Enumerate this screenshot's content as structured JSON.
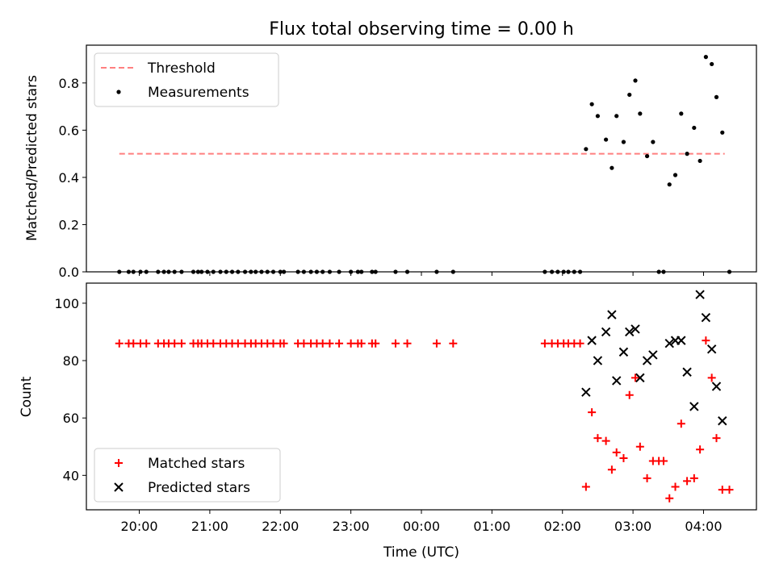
{
  "chart_data": [
    {
      "type": "scatter",
      "title": "Flux total observing time = 0.00 h",
      "xlabel": "",
      "ylabel": "Matched/Predicted stars",
      "xlim": [
        "19:15",
        "04:45"
      ],
      "ylim": [
        0,
        0.96
      ],
      "yticks": [
        0.0,
        0.2,
        0.4,
        0.6,
        0.8
      ],
      "ytick_labels": [
        "0.0",
        "0.2",
        "0.4",
        "0.6",
        "0.8"
      ],
      "legend": {
        "placement": "top-left",
        "entries": [
          "Threshold",
          "Measurements"
        ]
      },
      "threshold": {
        "name": "Threshold",
        "value": 0.5,
        "x_range": [
          "19:43",
          "04:18"
        ],
        "color": "#ff7f7f",
        "style": "dashed"
      },
      "series": [
        {
          "name": "Measurements",
          "color": "#000000",
          "marker": "dot",
          "points": [
            [
              "19:43",
              0
            ],
            [
              "19:51",
              0
            ],
            [
              "19:55",
              0
            ],
            [
              "20:01",
              0
            ],
            [
              "20:06",
              0
            ],
            [
              "20:16",
              0
            ],
            [
              "20:21",
              0
            ],
            [
              "20:25",
              0
            ],
            [
              "20:30",
              0
            ],
            [
              "20:36",
              0
            ],
            [
              "20:46",
              0
            ],
            [
              "20:50",
              0
            ],
            [
              "20:53",
              0
            ],
            [
              "20:58",
              0
            ],
            [
              "21:03",
              0
            ],
            [
              "21:09",
              0
            ],
            [
              "21:14",
              0
            ],
            [
              "21:19",
              0
            ],
            [
              "21:24",
              0
            ],
            [
              "21:30",
              0
            ],
            [
              "21:35",
              0
            ],
            [
              "21:39",
              0
            ],
            [
              "21:44",
              0
            ],
            [
              "21:49",
              0
            ],
            [
              "21:54",
              0
            ],
            [
              "22:00",
              0
            ],
            [
              "22:03",
              0
            ],
            [
              "22:15",
              0
            ],
            [
              "22:20",
              0
            ],
            [
              "22:26",
              0
            ],
            [
              "22:31",
              0
            ],
            [
              "22:36",
              0
            ],
            [
              "22:42",
              0
            ],
            [
              "22:50",
              0
            ],
            [
              "23:00",
              0
            ],
            [
              "23:06",
              0
            ],
            [
              "23:09",
              0
            ],
            [
              "23:18",
              0
            ],
            [
              "23:21",
              0
            ],
            [
              "23:38",
              0
            ],
            [
              "23:48",
              0
            ],
            [
              "00:13",
              0
            ],
            [
              "00:27",
              0
            ],
            [
              "01:45",
              0
            ],
            [
              "01:51",
              0
            ],
            [
              "01:56",
              0
            ],
            [
              "02:01",
              0
            ],
            [
              "02:05",
              0
            ],
            [
              "02:10",
              0
            ],
            [
              "02:15",
              0
            ],
            [
              "02:20",
              0.52
            ],
            [
              "02:25",
              0.71
            ],
            [
              "02:30",
              0.66
            ],
            [
              "02:37",
              0.56
            ],
            [
              "02:42",
              0.44
            ],
            [
              "02:46",
              0.66
            ],
            [
              "02:52",
              0.55
            ],
            [
              "02:57",
              0.75
            ],
            [
              "03:02",
              0.81
            ],
            [
              "03:06",
              0.67
            ],
            [
              "03:12",
              0.49
            ],
            [
              "03:17",
              0.55
            ],
            [
              "03:22",
              0
            ],
            [
              "03:26",
              0
            ],
            [
              "03:31",
              0.37
            ],
            [
              "03:36",
              0.41
            ],
            [
              "03:41",
              0.67
            ],
            [
              "03:46",
              0.5
            ],
            [
              "03:52",
              0.61
            ],
            [
              "03:57",
              0.47
            ],
            [
              "04:02",
              0.91
            ],
            [
              "04:07",
              0.88
            ],
            [
              "04:11",
              0.74
            ],
            [
              "04:16",
              0.59
            ],
            [
              "04:22",
              0
            ]
          ]
        }
      ]
    },
    {
      "type": "scatter",
      "title": "",
      "xlabel": "Time (UTC)",
      "ylabel": "Count",
      "xlim": [
        "19:15",
        "04:45"
      ],
      "ylim": [
        28,
        107
      ],
      "yticks": [
        40,
        60,
        80,
        100
      ],
      "ytick_labels": [
        "40",
        "60",
        "80",
        "100"
      ],
      "xticks": [
        "20:00",
        "21:00",
        "22:00",
        "23:00",
        "00:00",
        "01:00",
        "02:00",
        "03:00",
        "04:00"
      ],
      "legend": {
        "placement": "bottom-left",
        "entries": [
          "Matched stars",
          "Predicted stars"
        ]
      },
      "series": [
        {
          "name": "Matched stars",
          "color": "#ff0000",
          "marker": "plus",
          "points": [
            [
              "19:43",
              86
            ],
            [
              "19:51",
              86
            ],
            [
              "19:55",
              86
            ],
            [
              "20:01",
              86
            ],
            [
              "20:06",
              86
            ],
            [
              "20:16",
              86
            ],
            [
              "20:21",
              86
            ],
            [
              "20:25",
              86
            ],
            [
              "20:30",
              86
            ],
            [
              "20:36",
              86
            ],
            [
              "20:46",
              86
            ],
            [
              "20:50",
              86
            ],
            [
              "20:53",
              86
            ],
            [
              "20:58",
              86
            ],
            [
              "21:03",
              86
            ],
            [
              "21:09",
              86
            ],
            [
              "21:14",
              86
            ],
            [
              "21:19",
              86
            ],
            [
              "21:24",
              86
            ],
            [
              "21:30",
              86
            ],
            [
              "21:35",
              86
            ],
            [
              "21:39",
              86
            ],
            [
              "21:44",
              86
            ],
            [
              "21:49",
              86
            ],
            [
              "21:54",
              86
            ],
            [
              "22:00",
              86
            ],
            [
              "22:03",
              86
            ],
            [
              "22:15",
              86
            ],
            [
              "22:20",
              86
            ],
            [
              "22:26",
              86
            ],
            [
              "22:31",
              86
            ],
            [
              "22:36",
              86
            ],
            [
              "22:42",
              86
            ],
            [
              "22:50",
              86
            ],
            [
              "23:00",
              86
            ],
            [
              "23:06",
              86
            ],
            [
              "23:09",
              86
            ],
            [
              "23:18",
              86
            ],
            [
              "23:21",
              86
            ],
            [
              "23:38",
              86
            ],
            [
              "23:48",
              86
            ],
            [
              "00:13",
              86
            ],
            [
              "00:27",
              86
            ],
            [
              "01:45",
              86
            ],
            [
              "01:51",
              86
            ],
            [
              "01:56",
              86
            ],
            [
              "02:01",
              86
            ],
            [
              "02:05",
              86
            ],
            [
              "02:10",
              86
            ],
            [
              "02:15",
              86
            ],
            [
              "02:20",
              36
            ],
            [
              "02:25",
              62
            ],
            [
              "02:30",
              53
            ],
            [
              "02:37",
              52
            ],
            [
              "02:42",
              42
            ],
            [
              "02:46",
              48
            ],
            [
              "02:52",
              46
            ],
            [
              "02:57",
              68
            ],
            [
              "03:02",
              74
            ],
            [
              "03:06",
              50
            ],
            [
              "03:12",
              39
            ],
            [
              "03:17",
              45
            ],
            [
              "03:22",
              45
            ],
            [
              "03:26",
              45
            ],
            [
              "03:31",
              32
            ],
            [
              "03:36",
              36
            ],
            [
              "03:41",
              58
            ],
            [
              "03:46",
              38
            ],
            [
              "03:52",
              39
            ],
            [
              "03:57",
              49
            ],
            [
              "04:02",
              87
            ],
            [
              "04:07",
              74
            ],
            [
              "04:11",
              53
            ],
            [
              "04:16",
              35
            ],
            [
              "04:22",
              35
            ]
          ]
        },
        {
          "name": "Predicted stars",
          "color": "#000000",
          "marker": "x",
          "points": [
            [
              "02:20",
              69
            ],
            [
              "02:25",
              87
            ],
            [
              "02:30",
              80
            ],
            [
              "02:37",
              90
            ],
            [
              "02:42",
              96
            ],
            [
              "02:46",
              73
            ],
            [
              "02:52",
              83
            ],
            [
              "02:57",
              90
            ],
            [
              "03:02",
              91
            ],
            [
              "03:06",
              74
            ],
            [
              "03:12",
              80
            ],
            [
              "03:17",
              82
            ],
            [
              "03:31",
              86
            ],
            [
              "03:36",
              87
            ],
            [
              "03:41",
              87
            ],
            [
              "03:46",
              76
            ],
            [
              "03:52",
              64
            ],
            [
              "03:57",
              103
            ],
            [
              "04:02",
              95
            ],
            [
              "04:07",
              84
            ],
            [
              "04:11",
              71
            ],
            [
              "04:16",
              59
            ]
          ]
        }
      ]
    }
  ]
}
